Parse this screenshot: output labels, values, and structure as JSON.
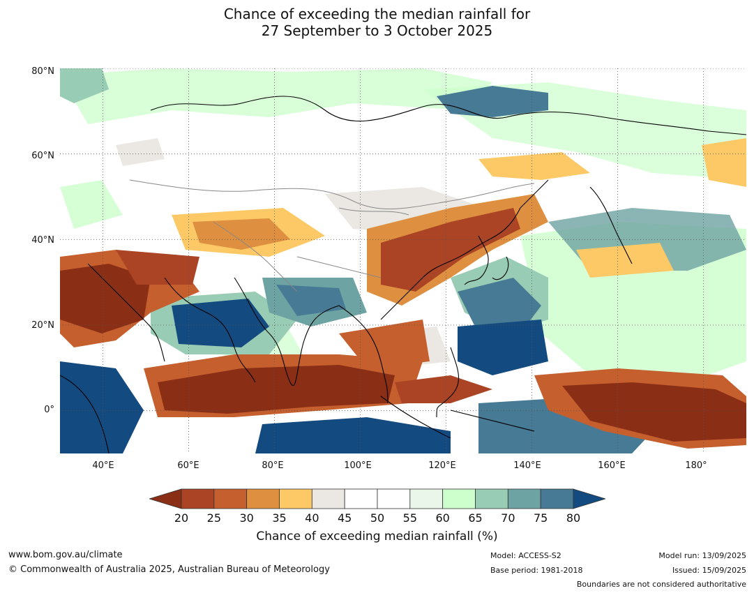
{
  "title_line1": "Chance of exceeding the median rainfall for",
  "title_line2": "27 September to 3 October 2025",
  "map": {
    "lat_labels": [
      "80°N",
      "60°N",
      "40°N",
      "20°N",
      "0°"
    ],
    "lon_labels": [
      "40°E",
      "60°E",
      "80°E",
      "100°E",
      "120°E",
      "140°E",
      "160°E",
      "180°"
    ],
    "lat_range": [
      -10,
      80
    ],
    "lon_range": [
      30,
      190
    ],
    "coastline_color": "#000000",
    "boundary_color": "#888888"
  },
  "colorbar": {
    "ticks": [
      "20",
      "25",
      "30",
      "35",
      "40",
      "45",
      "50",
      "55",
      "60",
      "65",
      "70",
      "75",
      "80"
    ],
    "colors": [
      "#8b2e16",
      "#aa4424",
      "#c55f2e",
      "#de9040",
      "#fdc966",
      "#ebe8e3",
      "#ffffff",
      "#ffffff",
      "#eaf6e9",
      "#ccffcc",
      "#99ccb4",
      "#6ea3a3",
      "#477a94",
      "#134a80"
    ],
    "label": "Chance of exceeding median rainfall (%)"
  },
  "footer": {
    "url": "www.bom.gov.au/climate",
    "copyright": "© Commonwealth of Australia 2025, Australian Bureau of Meteorology",
    "model": "Model: ACCESS-S2",
    "base_period": "Base period: 1981-2018",
    "model_run": "Model run: 13/09/2025",
    "issued": "Issued: 15/09/2025",
    "disclaimer": "Boundaries are not considered authoritative"
  }
}
